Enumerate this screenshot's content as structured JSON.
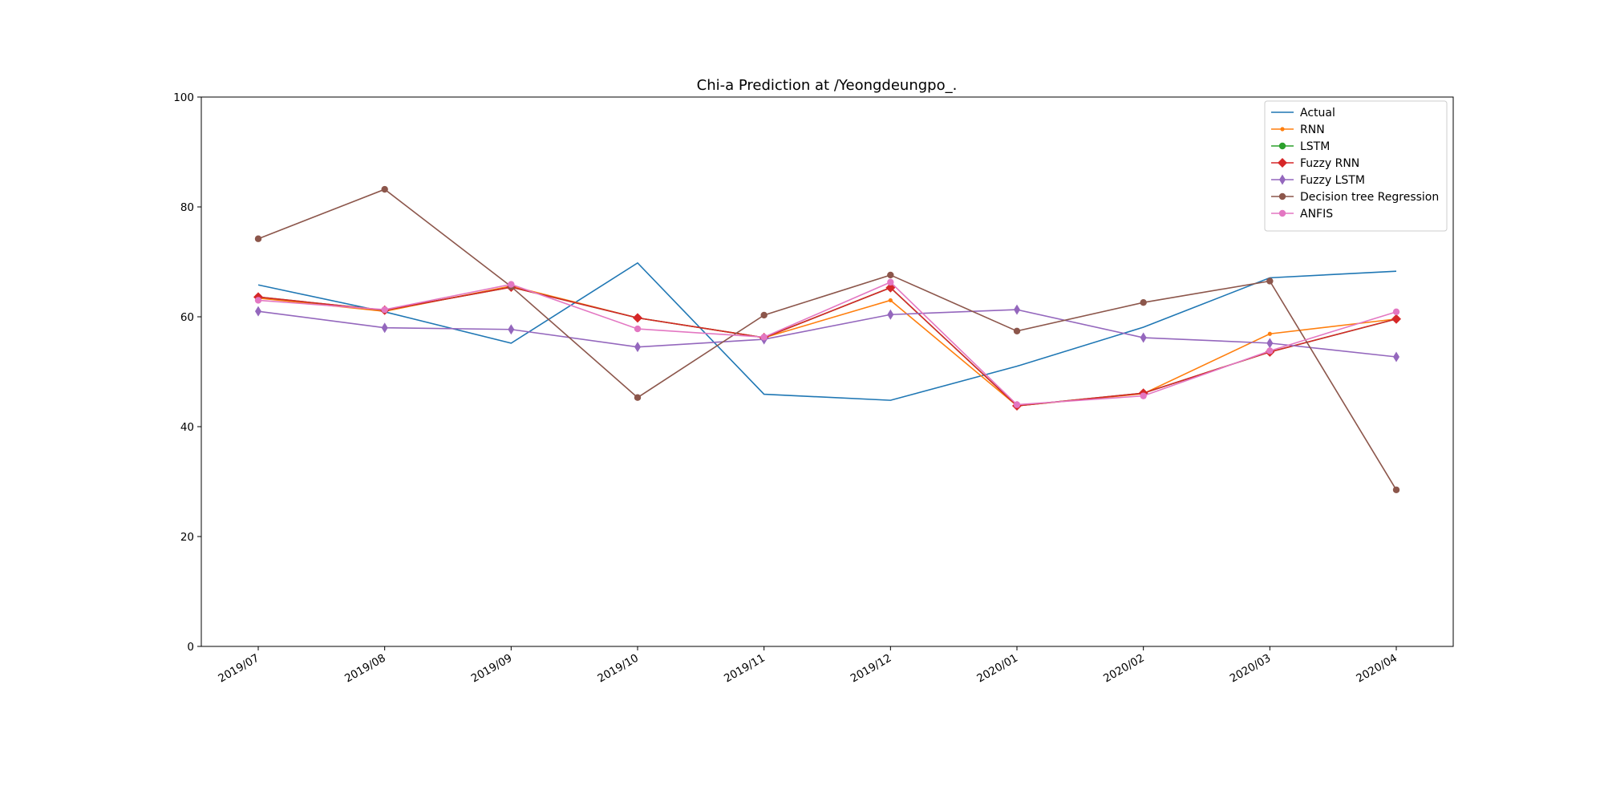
{
  "chart_data": {
    "type": "line",
    "title": "Chi-a Prediction at /Yeongdeungpo_.",
    "xlabel": "",
    "ylabel": "",
    "categories": [
      "2019/07",
      "2019/08",
      "2019/09",
      "2019/10",
      "2019/11",
      "2019/12",
      "2020/01",
      "2020/02",
      "2020/03",
      "2020/04"
    ],
    "ylim": [
      0,
      100
    ],
    "yticks": [
      0,
      20,
      40,
      60,
      80,
      100
    ],
    "grid": false,
    "legend_position": "upper right",
    "series": [
      {
        "name": "Actual",
        "color": "#1f77b4",
        "marker": "none",
        "values": [
          65.8,
          60.9,
          55.2,
          69.8,
          45.9,
          44.8,
          51.0,
          58.1,
          67.1,
          68.3
        ]
      },
      {
        "name": "RNN",
        "color": "#ff7f0e",
        "marker": "dot",
        "values": [
          63.4,
          61.0,
          65.6,
          59.8,
          56.2,
          63.0,
          43.8,
          46.0,
          56.9,
          59.6
        ]
      },
      {
        "name": "LSTM",
        "color": "#2ca02c",
        "marker": "circle",
        "values": [
          63.6,
          61.2,
          65.4,
          59.8,
          56.2,
          65.3,
          43.8,
          46.1,
          53.6,
          59.6
        ]
      },
      {
        "name": "Fuzzy RNN",
        "color": "#d62728",
        "marker": "diamond",
        "values": [
          63.6,
          61.2,
          65.4,
          59.8,
          56.2,
          65.3,
          43.8,
          46.1,
          53.6,
          59.6
        ]
      },
      {
        "name": "Fuzzy LSTM",
        "color": "#9467bd",
        "marker": "thin_diamond",
        "values": [
          61.0,
          58.0,
          57.7,
          54.5,
          55.9,
          60.4,
          61.3,
          56.2,
          55.2,
          52.7
        ]
      },
      {
        "name": "Decision tree Regression",
        "color": "#8c564b",
        "marker": "circle",
        "values": [
          74.2,
          83.2,
          65.5,
          45.3,
          60.3,
          67.6,
          57.4,
          62.6,
          66.5,
          28.5
        ]
      },
      {
        "name": "ANFIS",
        "color": "#e377c2",
        "marker": "circle",
        "values": [
          63.0,
          61.3,
          65.9,
          57.8,
          56.3,
          66.3,
          44.0,
          45.6,
          53.8,
          60.9
        ]
      }
    ]
  }
}
